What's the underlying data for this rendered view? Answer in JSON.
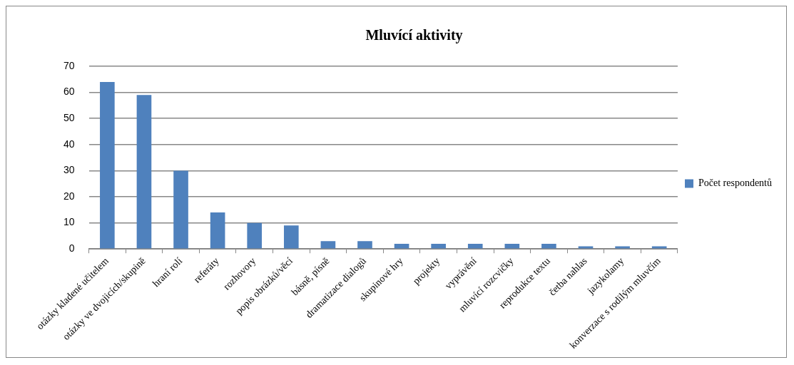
{
  "chart_data": {
    "type": "bar",
    "title": "Mluvící aktivity",
    "categories": [
      "otázky kladené učitelem",
      "otázky ve dvojicích/skupině",
      "hraní rolí",
      "referáty",
      "rozhovory",
      "popis obrázků/věcí",
      "básně, písně",
      "dramatizace dialogů",
      "skupinové hry",
      "projekty",
      "vyprávění",
      "mluvící rozcvičky",
      "reprodukce textu",
      "četba nahlas",
      "jazykolamy",
      "konverzace s rodilým mluvčím"
    ],
    "series": [
      {
        "name": "Počet respondentů",
        "color": "#4f81bd",
        "values": [
          64,
          59,
          30,
          14,
          10,
          9,
          3,
          3,
          2,
          2,
          2,
          2,
          2,
          1,
          1,
          1
        ]
      }
    ],
    "ylim": [
      0,
      70
    ],
    "yticks": [
      0,
      10,
      20,
      30,
      40,
      50,
      60,
      70
    ],
    "grid": "y",
    "legend": "right"
  }
}
